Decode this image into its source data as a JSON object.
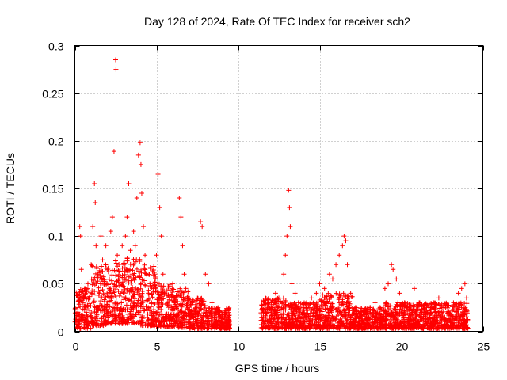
{
  "chart_data": {
    "type": "scatter",
    "title": "Day 128 of 2024, Rate Of TEC Index for receiver sch2",
    "xlabel": "GPS time / hours",
    "ylabel": "ROTI / TECUs",
    "xlim": [
      0,
      25
    ],
    "ylim": [
      0,
      0.3
    ],
    "xticks": [
      0,
      5,
      10,
      15,
      20,
      25
    ],
    "xtick_labels": [
      "0",
      "5",
      "10",
      "15",
      "20",
      "25"
    ],
    "yticks": [
      0,
      0.05,
      0.1,
      0.15,
      0.2,
      0.25,
      0.3
    ],
    "ytick_labels": [
      "0",
      "0.05",
      "0.1",
      "0.15",
      "0.2",
      "0.25",
      "0.3"
    ],
    "grid": true,
    "legend": "none",
    "marker": "plus",
    "color": "#ff0000",
    "series": [
      {
        "points": [
          [
            0.1,
            0.012
          ],
          [
            0.2,
            0.025
          ],
          [
            0.3,
            0.11
          ],
          [
            0.35,
            0.1
          ],
          [
            0.4,
            0.065
          ],
          [
            0.5,
            0.03
          ],
          [
            0.6,
            0.045
          ],
          [
            0.7,
            0.02
          ],
          [
            0.8,
            0.05
          ],
          [
            0.9,
            0.035
          ],
          [
            1.0,
            0.07
          ],
          [
            1.1,
            0.11
          ],
          [
            1.2,
            0.155
          ],
          [
            1.25,
            0.135
          ],
          [
            1.3,
            0.09
          ],
          [
            1.4,
            0.06
          ],
          [
            1.5,
            0.04
          ],
          [
            1.6,
            0.1
          ],
          [
            1.7,
            0.075
          ],
          [
            1.8,
            0.05
          ],
          [
            1.9,
            0.09
          ],
          [
            2.0,
            0.065
          ],
          [
            2.1,
            0.045
          ],
          [
            2.2,
            0.105
          ],
          [
            2.3,
            0.12
          ],
          [
            2.4,
            0.189
          ],
          [
            2.5,
            0.285
          ],
          [
            2.52,
            0.275
          ],
          [
            2.6,
            0.08
          ],
          [
            2.7,
            0.055
          ],
          [
            2.8,
            0.04
          ],
          [
            2.9,
            0.09
          ],
          [
            3.0,
            0.07
          ],
          [
            3.1,
            0.1
          ],
          [
            3.2,
            0.12
          ],
          [
            3.3,
            0.155
          ],
          [
            3.4,
            0.085
          ],
          [
            3.5,
            0.06
          ],
          [
            3.6,
            0.105
          ],
          [
            3.7,
            0.09
          ],
          [
            3.8,
            0.14
          ],
          [
            3.9,
            0.185
          ],
          [
            4.0,
            0.198
          ],
          [
            4.05,
            0.175
          ],
          [
            4.1,
            0.145
          ],
          [
            4.2,
            0.11
          ],
          [
            4.3,
            0.08
          ],
          [
            4.4,
            0.06
          ],
          [
            4.5,
            0.04
          ],
          [
            4.6,
            0.05
          ],
          [
            4.7,
            0.03
          ],
          [
            4.8,
            0.045
          ],
          [
            4.9,
            0.06
          ],
          [
            5.0,
            0.08
          ],
          [
            5.1,
            0.165
          ],
          [
            5.2,
            0.13
          ],
          [
            5.3,
            0.1
          ],
          [
            5.4,
            0.06
          ],
          [
            5.5,
            0.04
          ],
          [
            5.7,
            0.03
          ],
          [
            5.9,
            0.025
          ],
          [
            6.0,
            0.05
          ],
          [
            6.2,
            0.035
          ],
          [
            6.4,
            0.14
          ],
          [
            6.5,
            0.12
          ],
          [
            6.6,
            0.09
          ],
          [
            6.7,
            0.06
          ],
          [
            6.8,
            0.045
          ],
          [
            7.0,
            0.035
          ],
          [
            7.2,
            0.03
          ],
          [
            7.5,
            0.025
          ],
          [
            7.7,
            0.115
          ],
          [
            7.8,
            0.11
          ],
          [
            8.0,
            0.06
          ],
          [
            8.2,
            0.05
          ],
          [
            8.4,
            0.03
          ],
          [
            8.6,
            0.02
          ],
          [
            8.8,
            0.015
          ],
          [
            9.0,
            0.02
          ],
          [
            9.2,
            0.018
          ],
          [
            9.4,
            0.012
          ],
          [
            11.5,
            0.012
          ],
          [
            11.7,
            0.02
          ],
          [
            11.9,
            0.03
          ],
          [
            12.1,
            0.025
          ],
          [
            12.3,
            0.04
          ],
          [
            12.5,
            0.035
          ],
          [
            12.7,
            0.03
          ],
          [
            12.8,
            0.06
          ],
          [
            12.9,
            0.08
          ],
          [
            13.0,
            0.1
          ],
          [
            13.1,
            0.148
          ],
          [
            13.15,
            0.13
          ],
          [
            13.2,
            0.11
          ],
          [
            13.3,
            0.05
          ],
          [
            13.5,
            0.04
          ],
          [
            13.7,
            0.03
          ],
          [
            14.0,
            0.025
          ],
          [
            14.2,
            0.03
          ],
          [
            14.5,
            0.035
          ],
          [
            14.8,
            0.04
          ],
          [
            15.0,
            0.05
          ],
          [
            15.3,
            0.045
          ],
          [
            15.6,
            0.06
          ],
          [
            15.8,
            0.055
          ],
          [
            16.0,
            0.07
          ],
          [
            16.2,
            0.08
          ],
          [
            16.4,
            0.09
          ],
          [
            16.5,
            0.1
          ],
          [
            16.6,
            0.095
          ],
          [
            16.7,
            0.07
          ],
          [
            16.9,
            0.04
          ],
          [
            17.2,
            0.025
          ],
          [
            17.5,
            0.02
          ],
          [
            17.8,
            0.02
          ],
          [
            18.1,
            0.025
          ],
          [
            18.4,
            0.03
          ],
          [
            18.7,
            0.025
          ],
          [
            19.0,
            0.045
          ],
          [
            19.2,
            0.05
          ],
          [
            19.4,
            0.07
          ],
          [
            19.5,
            0.065
          ],
          [
            19.7,
            0.055
          ],
          [
            19.9,
            0.04
          ],
          [
            20.2,
            0.03
          ],
          [
            20.5,
            0.025
          ],
          [
            20.8,
            0.045
          ],
          [
            21.1,
            0.03
          ],
          [
            21.4,
            0.02
          ],
          [
            21.7,
            0.025
          ],
          [
            22.0,
            0.03
          ],
          [
            22.3,
            0.035
          ],
          [
            22.6,
            0.025
          ],
          [
            22.9,
            0.02
          ],
          [
            23.2,
            0.03
          ],
          [
            23.5,
            0.04
          ],
          [
            23.7,
            0.045
          ],
          [
            23.9,
            0.05
          ],
          [
            24.0,
            0.035
          ]
        ],
        "bands": [
          {
            "x": [
              0.0,
              1.0
            ],
            "low": 0.003,
            "high": 0.045
          },
          {
            "x": [
              1.0,
              2.0
            ],
            "low": 0.006,
            "high": 0.07
          },
          {
            "x": [
              2.0,
              3.0
            ],
            "low": 0.008,
            "high": 0.075
          },
          {
            "x": [
              3.0,
              4.0
            ],
            "low": 0.008,
            "high": 0.08
          },
          {
            "x": [
              4.0,
              5.0
            ],
            "low": 0.006,
            "high": 0.07
          },
          {
            "x": [
              5.0,
              6.0
            ],
            "low": 0.005,
            "high": 0.05
          },
          {
            "x": [
              6.0,
              7.0
            ],
            "low": 0.004,
            "high": 0.045
          },
          {
            "x": [
              7.0,
              8.0
            ],
            "low": 0.003,
            "high": 0.035
          },
          {
            "x": [
              8.0,
              9.5
            ],
            "low": 0.003,
            "high": 0.025
          },
          {
            "x": [
              11.4,
              13.0
            ],
            "low": 0.003,
            "high": 0.035
          },
          {
            "x": [
              13.0,
              15.0
            ],
            "low": 0.003,
            "high": 0.03
          },
          {
            "x": [
              15.0,
              17.0
            ],
            "low": 0.003,
            "high": 0.04
          },
          {
            "x": [
              17.0,
              19.0
            ],
            "low": 0.003,
            "high": 0.025
          },
          {
            "x": [
              19.0,
              21.0
            ],
            "low": 0.003,
            "high": 0.03
          },
          {
            "x": [
              21.0,
              24.1
            ],
            "low": 0.003,
            "high": 0.03
          }
        ]
      }
    ]
  }
}
